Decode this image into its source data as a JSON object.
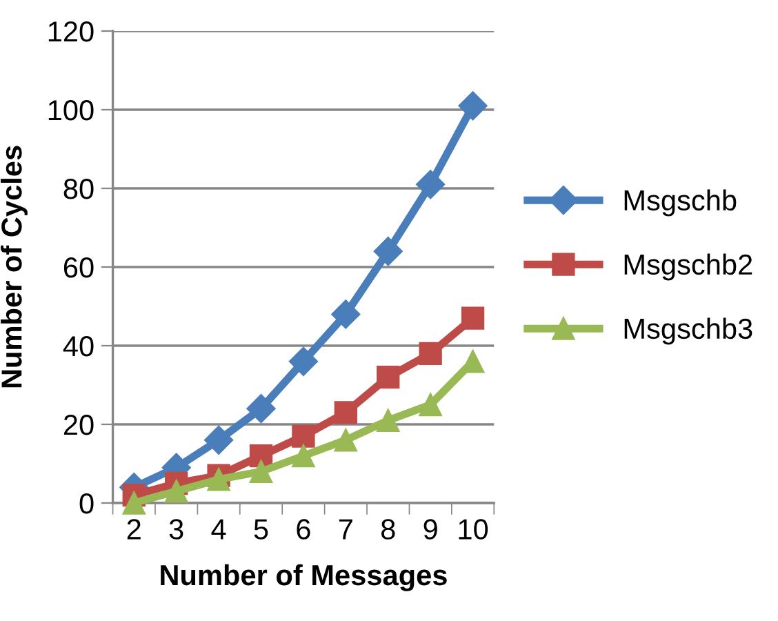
{
  "chart_data": {
    "type": "line",
    "xlabel": "Number of Messages",
    "ylabel": "Number of Cycles",
    "categories": [
      "2",
      "3",
      "4",
      "5",
      "6",
      "7",
      "8",
      "9",
      "10"
    ],
    "series": [
      {
        "name": "Msgschb",
        "color": "#4a7ebb",
        "marker": "diamond",
        "values": [
          4,
          9,
          16,
          24,
          36,
          48,
          64,
          81,
          101
        ]
      },
      {
        "name": "Msgschb2",
        "color": "#be4b48",
        "marker": "square",
        "values": [
          2,
          5,
          7,
          12,
          17,
          23,
          32,
          38,
          47
        ]
      },
      {
        "name": "Msgschb3",
        "color": "#98b954",
        "marker": "triangle",
        "values": [
          0,
          3,
          6,
          8,
          12,
          16,
          21,
          25,
          36
        ]
      }
    ],
    "ylim": [
      0,
      120
    ],
    "yticks": [
      0,
      20,
      40,
      60,
      80,
      100,
      120
    ],
    "grid": "y",
    "legend": "right"
  }
}
